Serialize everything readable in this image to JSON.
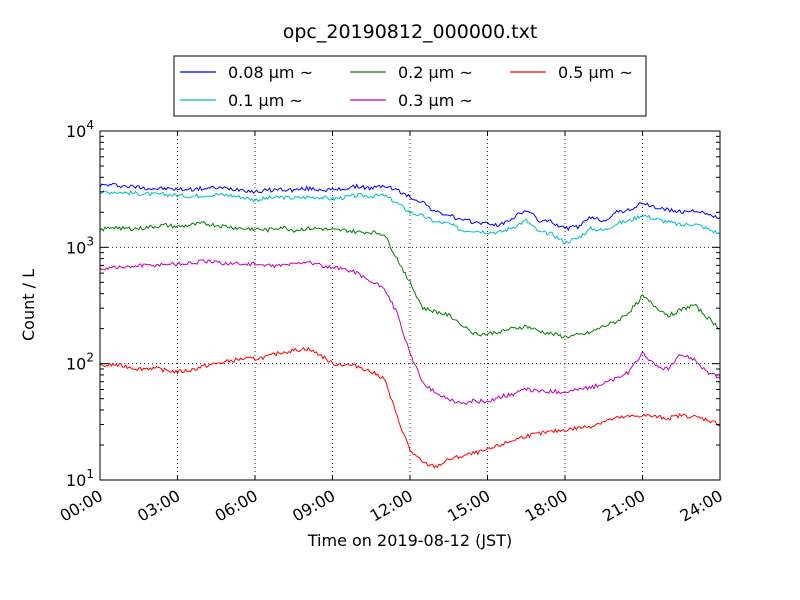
{
  "chart_data": {
    "type": "line",
    "title": "opc_20190812_000000.txt",
    "xlabel": "Time on 2019-08-12 (JST)",
    "ylabel": "Count / L",
    "y_scale": "log",
    "xlim": [
      "00:00",
      "24:00"
    ],
    "ylim": [
      10,
      10000
    ],
    "grid": true,
    "legend_position": "top",
    "x_tick_labels": [
      "00:00",
      "03:00",
      "06:00",
      "09:00",
      "12:00",
      "15:00",
      "18:00",
      "21:00",
      "24:00"
    ],
    "y_tick_labels": [
      {
        "base": "10",
        "exp": "1"
      },
      {
        "base": "10",
        "exp": "2"
      },
      {
        "base": "10",
        "exp": "3"
      },
      {
        "base": "10",
        "exp": "4"
      }
    ],
    "x": [
      "00:00",
      "00:30",
      "01:00",
      "01:30",
      "02:00",
      "02:30",
      "03:00",
      "03:30",
      "04:00",
      "04:30",
      "05:00",
      "05:30",
      "06:00",
      "06:30",
      "07:00",
      "07:30",
      "08:00",
      "08:30",
      "09:00",
      "09:30",
      "10:00",
      "10:30",
      "11:00",
      "11:30",
      "12:00",
      "12:30",
      "13:00",
      "13:30",
      "14:00",
      "14:30",
      "15:00",
      "15:30",
      "16:00",
      "16:30",
      "17:00",
      "17:30",
      "18:00",
      "18:30",
      "19:00",
      "19:30",
      "20:00",
      "20:30",
      "21:00",
      "21:30",
      "22:00",
      "22:30",
      "23:00",
      "23:30",
      "24:00"
    ],
    "series": [
      {
        "name": "0.08 μm ~",
        "color": "#0000ff",
        "values": [
          3400,
          3450,
          3350,
          3300,
          3200,
          3200,
          3150,
          3150,
          3200,
          3250,
          3200,
          3150,
          3000,
          3100,
          3150,
          3100,
          3200,
          3150,
          3100,
          3200,
          3350,
          3200,
          3400,
          3100,
          2700,
          2450,
          2000,
          1900,
          1700,
          1650,
          1600,
          1550,
          1800,
          2100,
          1700,
          1650,
          1450,
          1500,
          1800,
          1700,
          2000,
          2100,
          2400,
          2200,
          2100,
          2000,
          2100,
          1900,
          1800
        ]
      },
      {
        "name": "0.1 μm ~",
        "color": "#00bfbf",
        "values": [
          2950,
          3000,
          2950,
          2900,
          2850,
          2850,
          2800,
          2750,
          2800,
          2850,
          2800,
          2700,
          2550,
          2650,
          2700,
          2650,
          2700,
          2700,
          2600,
          2700,
          2800,
          2750,
          2800,
          2400,
          2000,
          1850,
          1650,
          1600,
          1400,
          1400,
          1350,
          1350,
          1500,
          1700,
          1350,
          1300,
          1100,
          1200,
          1450,
          1400,
          1600,
          1700,
          1900,
          1750,
          1650,
          1550,
          1600,
          1450,
          1300
        ]
      },
      {
        "name": "0.2 μm ~",
        "color": "#008000",
        "values": [
          1400,
          1500,
          1450,
          1450,
          1500,
          1550,
          1500,
          1550,
          1600,
          1550,
          1500,
          1450,
          1450,
          1400,
          1500,
          1400,
          1450,
          1450,
          1400,
          1400,
          1350,
          1350,
          1300,
          800,
          500,
          300,
          280,
          260,
          220,
          180,
          180,
          190,
          200,
          210,
          190,
          180,
          170,
          175,
          185,
          210,
          230,
          280,
          380,
          310,
          260,
          290,
          320,
          250,
          200
        ]
      },
      {
        "name": "0.3 μm ~",
        "color": "#bf00bf",
        "values": [
          650,
          680,
          670,
          700,
          700,
          720,
          720,
          730,
          760,
          740,
          730,
          720,
          720,
          690,
          700,
          720,
          760,
          700,
          660,
          650,
          600,
          500,
          450,
          270,
          120,
          70,
          55,
          50,
          45,
          48,
          47,
          52,
          55,
          60,
          58,
          58,
          57,
          60,
          62,
          68,
          75,
          85,
          125,
          95,
          90,
          120,
          110,
          85,
          75
        ]
      },
      {
        "name": "0.5 μm ~",
        "color": "#ff0000",
        "values": [
          95,
          98,
          95,
          90,
          92,
          88,
          85,
          88,
          95,
          100,
          105,
          110,
          110,
          115,
          125,
          130,
          135,
          120,
          100,
          98,
          95,
          85,
          75,
          35,
          18,
          14,
          13,
          15,
          16,
          17,
          18,
          20,
          22,
          24,
          25,
          26,
          27,
          28,
          29,
          32,
          34,
          35,
          36,
          35,
          34,
          36,
          35,
          33,
          30
        ]
      }
    ]
  }
}
